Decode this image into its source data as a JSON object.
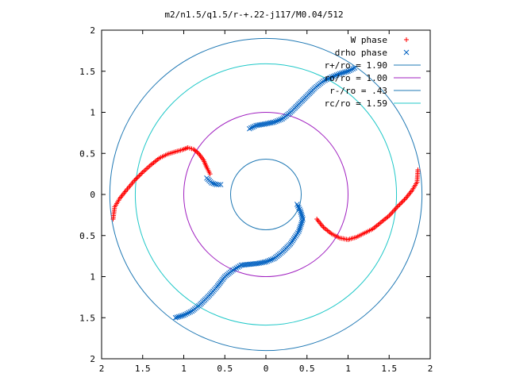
{
  "chart_data": {
    "type": "scatter",
    "title": "m2/n1.5/q1.5/r-+.22-j117/M0.04/512",
    "xlabel": "",
    "ylabel": "",
    "xlim": [
      -2,
      2
    ],
    "ylim": [
      -2,
      2
    ],
    "x_ticks": [
      -2,
      -1.5,
      -1,
      -0.5,
      0,
      0.5,
      1,
      1.5,
      2
    ],
    "y_ticks": [
      -2,
      -1.5,
      -1,
      -0.5,
      0,
      0.5,
      1,
      1.5,
      2
    ],
    "x_tick_labels": [
      "2",
      "1.5",
      "1",
      "0.5",
      "0",
      "0.5",
      "1",
      "1.5",
      "2"
    ],
    "y_tick_labels": [
      "2",
      "1.5",
      "1",
      "0.5",
      "0",
      "0.5",
      "1",
      "1.5",
      "2"
    ],
    "grid": false,
    "legend_position": "top-right",
    "series": [
      {
        "name": "W phase",
        "marker": "plus",
        "color": "#ff0000",
        "segments": [
          [
            [
              -1.86,
              -0.3
            ],
            [
              -1.84,
              -0.15
            ],
            [
              -1.78,
              -0.05
            ],
            [
              -1.7,
              0.05
            ],
            [
              -1.6,
              0.17
            ],
            [
              -1.5,
              0.27
            ],
            [
              -1.4,
              0.36
            ],
            [
              -1.3,
              0.44
            ],
            [
              -1.2,
              0.49
            ],
            [
              -1.1,
              0.52
            ],
            [
              -1.0,
              0.55
            ],
            [
              -0.95,
              0.57
            ],
            [
              -0.88,
              0.55
            ],
            [
              -0.82,
              0.5
            ],
            [
              -0.76,
              0.42
            ],
            [
              -0.72,
              0.33
            ],
            [
              -0.68,
              0.25
            ]
          ],
          [
            [
              0.62,
              -0.3
            ],
            [
              0.7,
              -0.4
            ],
            [
              0.8,
              -0.48
            ],
            [
              0.9,
              -0.53
            ],
            [
              1.0,
              -0.55
            ],
            [
              1.1,
              -0.52
            ],
            [
              1.2,
              -0.47
            ],
            [
              1.3,
              -0.42
            ],
            [
              1.4,
              -0.34
            ],
            [
              1.5,
              -0.26
            ],
            [
              1.6,
              -0.15
            ],
            [
              1.7,
              -0.05
            ],
            [
              1.78,
              0.05
            ],
            [
              1.84,
              0.15
            ],
            [
              1.85,
              0.3
            ]
          ]
        ]
      },
      {
        "name": "drho phase",
        "marker": "cross",
        "color": "#0060c0",
        "segments": [
          [
            [
              -0.72,
              0.2
            ],
            [
              -0.66,
              0.14
            ],
            [
              -0.6,
              0.12
            ],
            [
              -0.55,
              0.12
            ]
          ],
          [
            [
              -0.2,
              0.8
            ],
            [
              -0.12,
              0.84
            ],
            [
              0.0,
              0.86
            ],
            [
              0.1,
              0.88
            ],
            [
              0.2,
              0.92
            ],
            [
              0.3,
              1.0
            ],
            [
              0.4,
              1.1
            ],
            [
              0.5,
              1.2
            ],
            [
              0.6,
              1.3
            ],
            [
              0.7,
              1.38
            ],
            [
              0.8,
              1.43
            ],
            [
              0.9,
              1.47
            ],
            [
              1.0,
              1.5
            ],
            [
              1.08,
              1.54
            ]
          ],
          [
            [
              -1.1,
              -1.5
            ],
            [
              -1.0,
              -1.47
            ],
            [
              -0.9,
              -1.42
            ],
            [
              -0.8,
              -1.34
            ],
            [
              -0.7,
              -1.24
            ],
            [
              -0.6,
              -1.13
            ],
            [
              -0.5,
              -1.0
            ],
            [
              -0.4,
              -0.92
            ],
            [
              -0.3,
              -0.86
            ],
            [
              -0.2,
              -0.85
            ],
            [
              -0.1,
              -0.84
            ],
            [
              0.0,
              -0.82
            ],
            [
              0.1,
              -0.78
            ],
            [
              0.2,
              -0.7
            ],
            [
              0.3,
              -0.6
            ],
            [
              0.4,
              -0.45
            ],
            [
              0.45,
              -0.3
            ],
            [
              0.42,
              -0.2
            ],
            [
              0.38,
              -0.12
            ]
          ]
        ]
      },
      {
        "name": "r+/ro = 1.90",
        "type": "circle",
        "radius": 1.9,
        "color": "#1f78b4"
      },
      {
        "name": "ro/ro = 1.00",
        "type": "circle",
        "radius": 1.0,
        "color": "#a020c0"
      },
      {
        "name": "r-/ro = .43",
        "type": "circle",
        "radius": 0.43,
        "color": "#1f78b4"
      },
      {
        "name": "rc/ro = 1.59",
        "type": "circle",
        "radius": 1.59,
        "color": "#20c8c8"
      }
    ]
  }
}
